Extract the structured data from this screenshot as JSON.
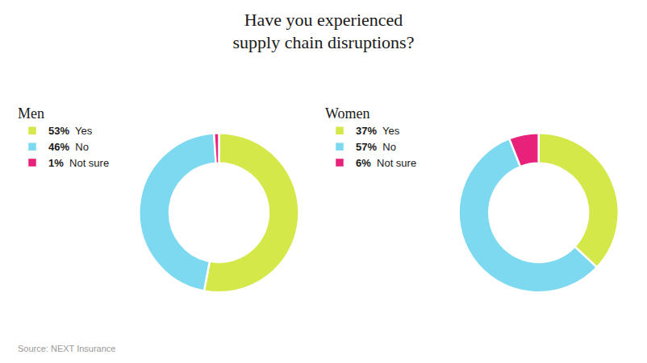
{
  "title": "Have you experienced\nsupply chain disruptions?",
  "annotations": [
    "Source: NEXT Insurance"
  ],
  "chart_data": [
    {
      "type": "donut",
      "title": "Men",
      "categories": [
        "Yes",
        "No",
        "Not sure"
      ],
      "values": [
        53,
        46,
        1
      ],
      "value_labels": [
        "53%",
        "46%",
        "1%"
      ],
      "colors": [
        "#d4e84a",
        "#7dd9f0",
        "#e8217a"
      ],
      "legend": "left"
    },
    {
      "type": "donut",
      "title": "Women",
      "categories": [
        "Yes",
        "No",
        "Not sure"
      ],
      "values": [
        37,
        57,
        6
      ],
      "value_labels": [
        "37%",
        "57%",
        "6%"
      ],
      "colors": [
        "#d4e84a",
        "#7dd9f0",
        "#e8217a"
      ],
      "legend": "left"
    }
  ]
}
